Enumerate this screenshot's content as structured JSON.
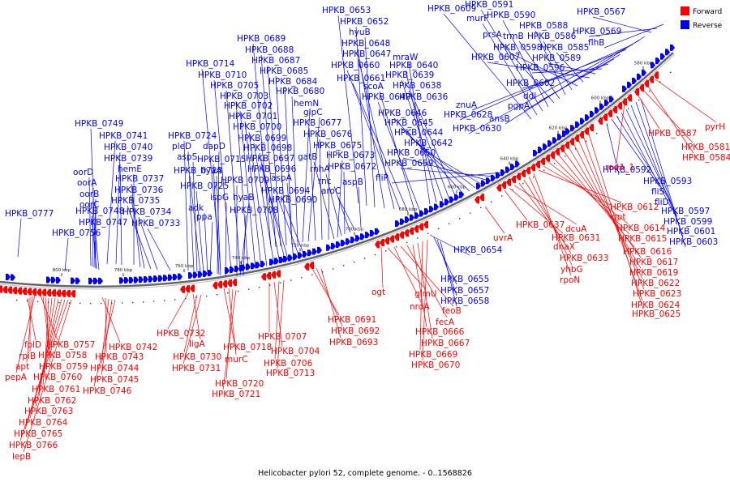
{
  "caption": "Helicobacter pylori 52, complete genome. - 0..1568826",
  "legend": [
    {
      "label": "Forward",
      "color": "#ff0000"
    },
    {
      "label": "Reverse",
      "color": "#0000ff"
    }
  ],
  "colors": {
    "forward": "#ff0000",
    "reverse": "#0000ff",
    "backbone": "#888888",
    "tick": "#000000"
  },
  "scale_labels": [
    "580 kbp",
    "600 kbp",
    "620 kbp",
    "640 kbp",
    "660 kbp",
    "680 kbp",
    "700 kbp",
    "720 kbp",
    "740 kbp",
    "760 kbp",
    "780 kbp",
    "800 kbp"
  ],
  "reverse_labels": [
    "HPKB_0777",
    "HPKB_0756",
    "HPKB_0749",
    "HPKB_0741",
    "HPKB_0740",
    "HPKB_0739",
    "hemE",
    "HPKB_0737",
    "HPKB_0736",
    "HPKB_0735",
    "HPKB_0734",
    "HPKB_0733",
    "oorD",
    "oorA",
    "oorB",
    "oorC",
    "HPKB_0748",
    "HPKB_0747",
    "HPKB_0724",
    "pleD",
    "aspS",
    "HPKB_0723",
    "HPKB_0725",
    "adk",
    "ppa",
    "dapD",
    "HPKB_0715",
    "hyaA",
    "ispG",
    "HPKB_0709",
    "hyaB",
    "HPKB_0708",
    "HPKB_0714",
    "HPKB_0710",
    "HPKB_0705",
    "HPKB_0703",
    "HPKB_0702",
    "HPKB_0701",
    "HPKB_0700",
    "HPKB_0699",
    "HPKB_0698",
    "HPKB_0697",
    "HPKB_0696",
    "aspA",
    "HPKB_0694",
    "HPKB_0690",
    "HPKB_0689",
    "HPKB_0688",
    "HPKB_0687",
    "HPKB_0685",
    "HPKB_0684",
    "HPKB_0680",
    "hemN",
    "glpC",
    "HPKB_0677",
    "HPKB_0676",
    "HPKB_0675",
    "gatB",
    "HPKB_0673",
    "rnhA",
    "HPKB_0672",
    "rnc",
    "aroC",
    "aspB",
    "HPKB_0653",
    "HPKB_0652",
    "hyuB",
    "HPKB_0648",
    "HPKB_0647",
    "HPKB_0660",
    "HPKB_0661",
    "scoA",
    "HPKB_0649",
    "mraW",
    "HPKB_0640",
    "HPKB_0639",
    "HPKB_0638",
    "HPKB_0636",
    "HPKB_0646",
    "HPKB_0645",
    "HPKB_0644",
    "HPKB_0642",
    "HPKB_0650",
    "HPKB_0659",
    "fliP",
    "HPKB_0609",
    "murF",
    "HPKB_0591",
    "HPKB_0590",
    "prsA",
    "trmB",
    "HPKB_0588",
    "HPKB_0586",
    "HPKB_0598",
    "HPKB_0585",
    "HPKB_0607",
    "HPKB_0589",
    "HPKB_0596",
    "HPKB_0602",
    "ddl",
    "pgpA",
    "znuA",
    "HPKB_0628",
    "HPKB_0630",
    "ansB",
    "HPKB_0567",
    "HPKB_0569",
    "flhB",
    "HPKB_0592",
    "HPKB_0593",
    "fliS",
    "fliD",
    "HPKB_0597",
    "HPKB_0599",
    "HPKB_0601",
    "HPKB_0603",
    "HPKB_0654",
    "HPKB_0655",
    "HPKB_0657",
    "HPKB_0658"
  ],
  "forward_labels": [
    "folD",
    "rpiB",
    "apt",
    "pepA",
    "HPKB_0757",
    "HPKB_0758",
    "HPKB_0759",
    "HPKB_0760",
    "HPKB_0761",
    "HPKB_0762",
    "HPKB_0763",
    "HPKB_0764",
    "HPKB_0765",
    "HPKB_0766",
    "lepB",
    "HPKB_0742",
    "HPKB_0743",
    "HPKB_0744",
    "HPKB_0745",
    "HPKB_0746",
    "HPKB_0732",
    "ligA",
    "HPKB_0730",
    "HPKB_0731",
    "HPKB_0718",
    "murC",
    "HPKB_0720",
    "HPKB_0721",
    "HPKB_0707",
    "HPKB_0704",
    "HPKB_0706",
    "HPKB_0713",
    "HPKB_0691",
    "HPKB_0692",
    "HPKB_0693",
    "ogt",
    "glmU",
    "nrdA",
    "feoB",
    "fecA",
    "HPKB_0666",
    "HPKB_0667",
    "HPKB_0669",
    "HPKB_0670",
    "uvrA",
    "HPKB_0637",
    "HPKB_0631",
    "dcuA",
    "dnaX",
    "HPKB_0633",
    "yhbG",
    "rpoN",
    "HPKB_0612",
    "gpt",
    "HPKB_0614",
    "HPKB_0615",
    "HPKB_0616",
    "HPKB_0617",
    "HPKB_0619",
    "HPKB_0622",
    "HPKB_0623",
    "HPKB_0624",
    "HPKB_0625",
    "rodA_1",
    "HPKB_0587",
    "HPKB_0581",
    "HPKB_0584",
    "pyrH"
  ]
}
